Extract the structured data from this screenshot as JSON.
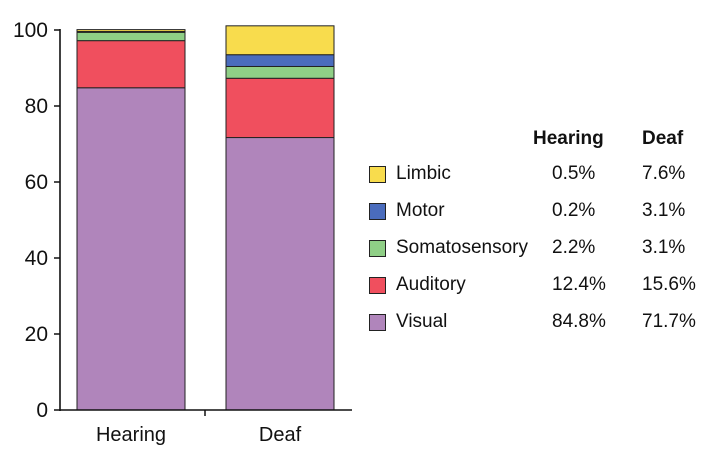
{
  "chart_data": {
    "type": "bar",
    "stacked": true,
    "categories": [
      "Hearing",
      "Deaf"
    ],
    "ylim": [
      0,
      100
    ],
    "yticks": [
      0,
      20,
      40,
      60,
      80,
      100
    ],
    "series": [
      {
        "name": "Visual",
        "color": "#b085bb",
        "values": [
          84.8,
          71.7
        ]
      },
      {
        "name": "Auditory",
        "color": "#f04f5e",
        "values": [
          12.4,
          15.6
        ]
      },
      {
        "name": "Somatosensory",
        "color": "#8fcf86",
        "values": [
          2.2,
          3.1
        ]
      },
      {
        "name": "Motor",
        "color": "#4a6cbd",
        "values": [
          0.2,
          3.1
        ]
      },
      {
        "name": "Limbic",
        "color": "#f8dc4d",
        "values": [
          0.5,
          7.6
        ]
      }
    ]
  },
  "legend": {
    "headers": [
      "Hearing",
      "Deaf"
    ],
    "rows": [
      {
        "label": "Limbic",
        "color": "#f8dc4d",
        "hearing": "0.5%",
        "deaf": "7.6%"
      },
      {
        "label": "Motor",
        "color": "#4a6cbd",
        "hearing": "0.2%",
        "deaf": "3.1%"
      },
      {
        "label": "Somatosensory",
        "color": "#8fcf86",
        "hearing": "2.2%",
        "deaf": "3.1%"
      },
      {
        "label": "Auditory",
        "color": "#f04f5e",
        "hearing": "12.4%",
        "deaf": "15.6%"
      },
      {
        "label": "Visual",
        "color": "#b085bb",
        "hearing": "84.8%",
        "deaf": "71.7%"
      }
    ]
  }
}
